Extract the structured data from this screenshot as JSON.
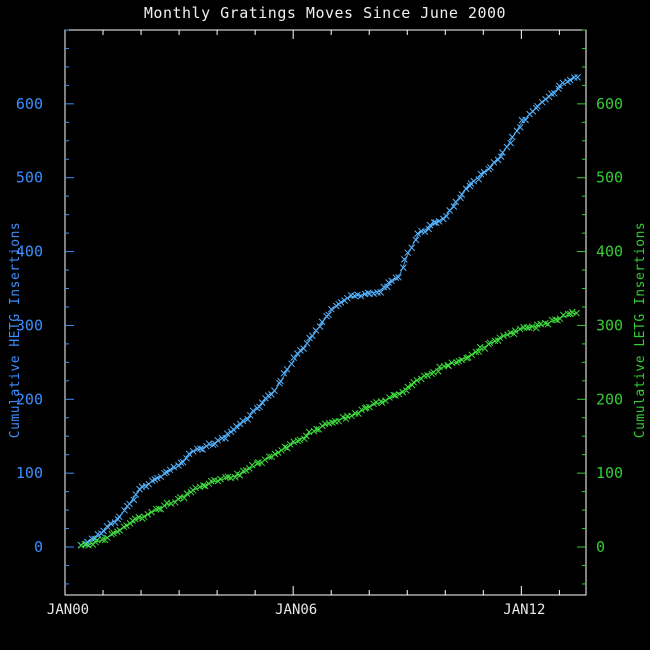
{
  "title": "Monthly Gratings Moves Since June 2000",
  "colors": {
    "background": "#000000",
    "frame": "#ffffff",
    "title_text": "#f0f0f0",
    "hetg_axis": "#3d8eff",
    "hetg_marker": "#56b4ff",
    "letg_axis": "#35cc35",
    "letg_marker": "#3fdc3f"
  },
  "chart_data": {
    "type": "line",
    "title": "Monthly Gratings Moves Since June 2000",
    "xlabel": "",
    "grid": false,
    "legend": "none",
    "marker": "x",
    "background": "#000000",
    "frame_color": "#ffffff",
    "x_range": [
      2000.0,
      2013.7
    ],
    "y_range": [
      -65,
      700
    ],
    "x_major_ticks": [
      {
        "year": 2000,
        "label": "JAN00"
      },
      {
        "year": 2006,
        "label": "JAN06"
      },
      {
        "year": 2012,
        "label": "JAN12"
      }
    ],
    "x_minor_step_years": 1,
    "y_major_ticks": [
      0,
      100,
      200,
      300,
      400,
      500,
      600
    ],
    "y_minor_step": 25,
    "yaxis_left": {
      "label": "Cumulative HETG Insertions",
      "color": "#3d8eff",
      "ticks": [
        0,
        100,
        200,
        300,
        400,
        500,
        600
      ]
    },
    "yaxis_right": {
      "label": "Cumulative LETG Insertions",
      "color": "#35cc35",
      "ticks": [
        0,
        100,
        200,
        300,
        400,
        500,
        600
      ]
    },
    "series": [
      {
        "id": "hetg",
        "name": "Cumulative HETG Insertions",
        "axis": "left",
        "color": "#56b4ff",
        "points": [
          [
            2000.45,
            0
          ],
          [
            2001.0,
            20
          ],
          [
            2001.5,
            45
          ],
          [
            2002.0,
            80
          ],
          [
            2002.4,
            92
          ],
          [
            2003.0,
            110
          ],
          [
            2003.3,
            128
          ],
          [
            2004.0,
            142
          ],
          [
            2004.5,
            160
          ],
          [
            2005.0,
            185
          ],
          [
            2005.5,
            210
          ],
          [
            2006.0,
            252
          ],
          [
            2006.5,
            285
          ],
          [
            2007.0,
            320
          ],
          [
            2007.4,
            337
          ],
          [
            2008.3,
            347
          ],
          [
            2008.8,
            367
          ],
          [
            2009.0,
            395
          ],
          [
            2009.3,
            424
          ],
          [
            2010.0,
            447
          ],
          [
            2010.6,
            490
          ],
          [
            2011.0,
            505
          ],
          [
            2011.5,
            532
          ],
          [
            2012.0,
            574
          ],
          [
            2012.5,
            601
          ],
          [
            2013.0,
            622
          ],
          [
            2013.5,
            640
          ]
        ]
      },
      {
        "id": "letg",
        "name": "Cumulative LETG Insertions",
        "axis": "right",
        "color": "#3fdc3f",
        "points": [
          [
            2000.45,
            0
          ],
          [
            2001.0,
            10
          ],
          [
            2002.0,
            40
          ],
          [
            2003.0,
            65
          ],
          [
            2003.5,
            80
          ],
          [
            2004.0,
            90
          ],
          [
            2004.5,
            96
          ],
          [
            2005.0,
            110
          ],
          [
            2005.5,
            125
          ],
          [
            2006.0,
            140
          ],
          [
            2006.5,
            155
          ],
          [
            2007.0,
            170
          ],
          [
            2007.5,
            176
          ],
          [
            2008.0,
            190
          ],
          [
            2008.5,
            200
          ],
          [
            2009.0,
            215
          ],
          [
            2009.4,
            231
          ],
          [
            2010.0,
            245
          ],
          [
            2010.5,
            255
          ],
          [
            2011.0,
            270
          ],
          [
            2011.5,
            285
          ],
          [
            2012.0,
            295
          ],
          [
            2012.6,
            301
          ],
          [
            2013.0,
            310
          ],
          [
            2013.5,
            318
          ]
        ]
      }
    ]
  }
}
